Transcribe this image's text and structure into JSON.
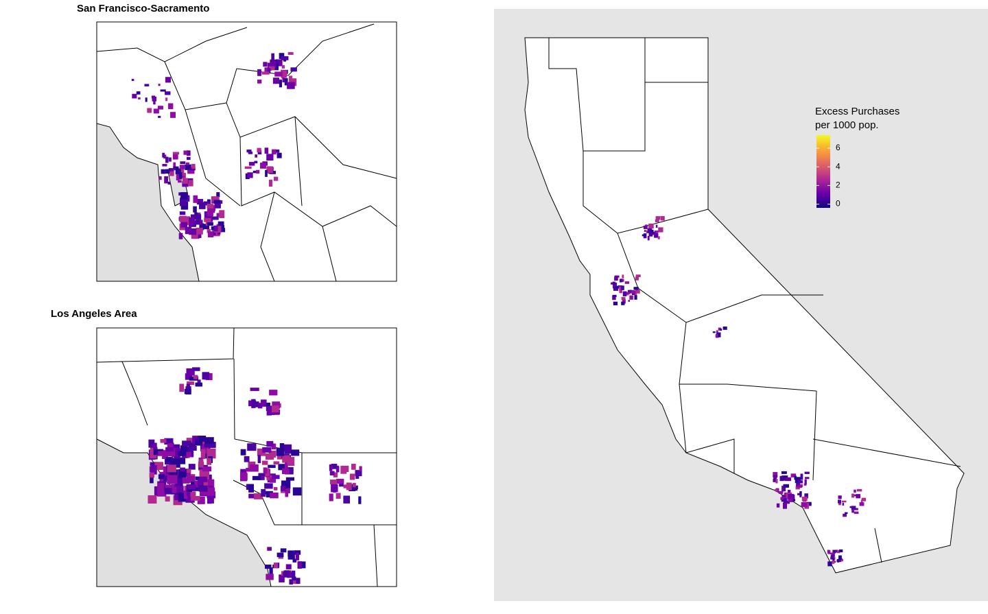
{
  "panels": [
    {
      "title": "San Francisco-Sacramento"
    },
    {
      "title": "Los Angeles Area"
    }
  ],
  "legend": {
    "title": [
      "Excess Purchases",
      "per 1000 pop."
    ],
    "ticks": [
      0,
      2,
      4,
      6
    ],
    "lim": [
      -0.4,
      7.4
    ],
    "colors": [
      "#0d0887",
      "#6a00a8",
      "#b12a90",
      "#e16462",
      "#fca636",
      "#f0f921"
    ]
  }
}
